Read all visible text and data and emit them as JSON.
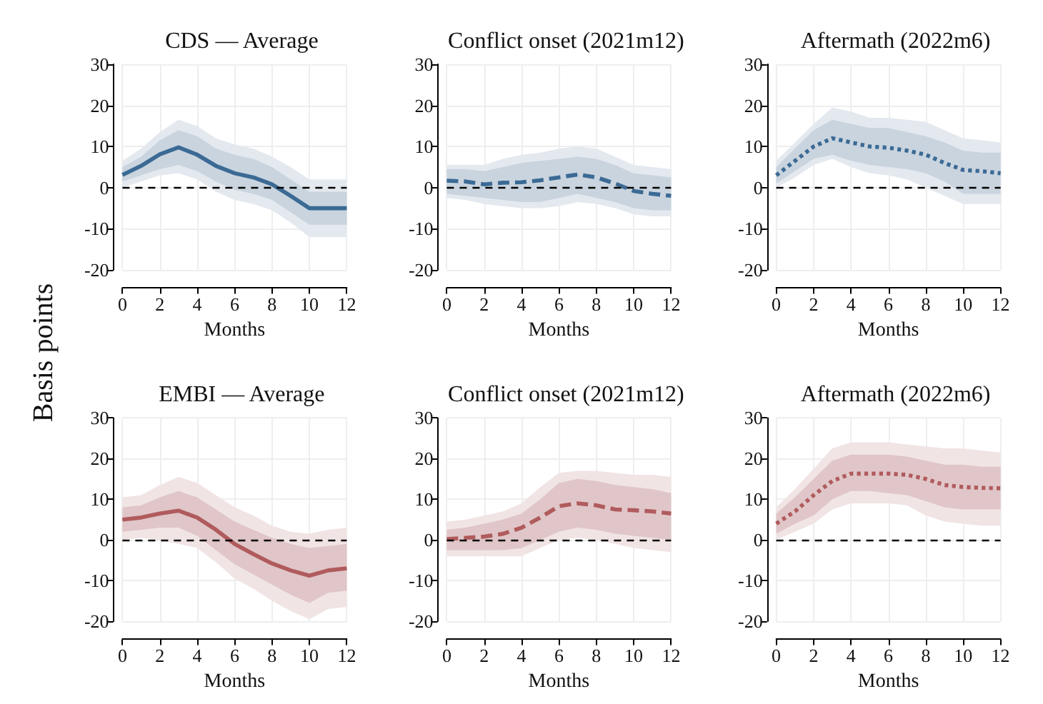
{
  "chart_data": [
    {
      "type": "line",
      "title": "CDS — Average",
      "xlabel": "Months",
      "ylabel": "Basis points",
      "x": [
        0,
        1,
        2,
        3,
        4,
        5,
        6,
        7,
        8,
        9,
        10,
        11,
        12
      ],
      "xlim": [
        0,
        12
      ],
      "xticks": [
        0,
        2,
        4,
        6,
        8,
        10,
        12
      ],
      "ylim": [
        -20,
        30
      ],
      "yticks": [
        -20,
        -10,
        0,
        10,
        20,
        30
      ],
      "grid": true,
      "line_style": "solid",
      "ref_lines": [
        {
          "axis": "y",
          "value": 0,
          "color": "#000000",
          "line_style": "dashed"
        }
      ],
      "series": [
        {
          "color": "#e4e9ef",
          "values": [
            null,
            null,
            null,
            null,
            null,
            null,
            null,
            null,
            null,
            null,
            null,
            null,
            null
          ],
          "lower": [
            0,
            1.5,
            3,
            3.5,
            2,
            -1,
            -3,
            -4,
            -5.5,
            -8.5,
            -12,
            -12,
            -12
          ],
          "upper": [
            6.5,
            9.5,
            13.5,
            16.5,
            15,
            12,
            10.5,
            9.5,
            7.5,
            5,
            2,
            2,
            2
          ]
        },
        {
          "color": "#c9d4df",
          "values": [
            null,
            null,
            null,
            null,
            null,
            null,
            null,
            null,
            null,
            null,
            null,
            null,
            null
          ],
          "lower": [
            1.5,
            3,
            4.5,
            5.5,
            4,
            1.5,
            -0.5,
            -1.5,
            -3,
            -6,
            -9,
            -9,
            -9
          ],
          "upper": [
            5,
            7.5,
            11.5,
            14,
            12.5,
            9.5,
            8,
            7,
            5,
            2,
            -1,
            -1,
            -1
          ]
        },
        {
          "color": "#3b6a94",
          "values": [
            3.1,
            5.3,
            8.1,
            9.8,
            8,
            5.3,
            3.5,
            2.5,
            0.8,
            -2,
            -5,
            -5,
            -5
          ]
        }
      ]
    },
    {
      "type": "line",
      "title": "Conflict onset (2021m12)",
      "xlabel": "Months",
      "x": [
        0,
        1,
        2,
        3,
        4,
        5,
        6,
        7,
        8,
        9,
        10,
        11,
        12
      ],
      "xlim": [
        0,
        12
      ],
      "xticks": [
        0,
        2,
        4,
        6,
        8,
        10,
        12
      ],
      "ylim": [
        -20,
        30
      ],
      "yticks": [
        -20,
        -10,
        0,
        10,
        20,
        30
      ],
      "grid": true,
      "line_style": "dashed",
      "ref_lines": [
        {
          "axis": "y",
          "value": 0,
          "color": "#000000",
          "line_style": "dashed"
        }
      ],
      "series": [
        {
          "color": "#e4e9ef",
          "values": [
            null,
            null,
            null,
            null,
            null,
            null,
            null,
            null,
            null,
            null,
            null,
            null,
            null
          ],
          "lower": [
            -2.5,
            -3,
            -4,
            -4.5,
            -5,
            -5,
            -4.5,
            -3.5,
            -4,
            -5,
            -6.5,
            -7,
            -7
          ],
          "upper": [
            5.5,
            5.5,
            5.5,
            7,
            8,
            8.5,
            9.5,
            10,
            9.5,
            7.5,
            5.5,
            5,
            4.5
          ]
        },
        {
          "color": "#c9d4df",
          "values": [
            null,
            null,
            null,
            null,
            null,
            null,
            null,
            null,
            null,
            null,
            null,
            null,
            null
          ],
          "lower": [
            -1.5,
            -2,
            -2.5,
            -3,
            -3.5,
            -3.5,
            -2.5,
            -1.5,
            -2.5,
            -3.5,
            -5,
            -5.5,
            -5.5
          ],
          "upper": [
            4.5,
            4.5,
            4,
            5,
            6,
            6.5,
            7,
            7.5,
            7,
            5.5,
            3.5,
            3,
            2.5
          ]
        },
        {
          "color": "#3b6a94",
          "values": [
            1.7,
            1.5,
            0.8,
            1.2,
            1.3,
            1.8,
            2.5,
            3.2,
            2.5,
            1,
            -0.8,
            -1.5,
            -2
          ]
        }
      ]
    },
    {
      "type": "line",
      "title": "Aftermath (2022m6)",
      "xlabel": "Months",
      "x": [
        0,
        1,
        2,
        3,
        4,
        5,
        6,
        7,
        8,
        9,
        10,
        11,
        12
      ],
      "xlim": [
        0,
        12
      ],
      "xticks": [
        0,
        2,
        4,
        6,
        8,
        10,
        12
      ],
      "ylim": [
        -20,
        30
      ],
      "yticks": [
        -20,
        -10,
        0,
        10,
        20,
        30
      ],
      "grid": true,
      "line_style": "dotted",
      "ref_lines": [
        {
          "axis": "y",
          "value": 0,
          "color": "#000000",
          "line_style": "dashed"
        }
      ],
      "series": [
        {
          "color": "#e4e9ef",
          "values": [
            null,
            null,
            null,
            null,
            null,
            null,
            null,
            null,
            null,
            null,
            null,
            null,
            null
          ],
          "lower": [
            0,
            2.5,
            5.5,
            7,
            5,
            3.5,
            3,
            2,
            0,
            -2,
            -4,
            -4,
            -4
          ],
          "upper": [
            6.5,
            11,
            15.5,
            19.5,
            18.5,
            17,
            17,
            16.5,
            16,
            14,
            12,
            11.5,
            11
          ]
        },
        {
          "color": "#c9d4df",
          "values": [
            null,
            null,
            null,
            null,
            null,
            null,
            null,
            null,
            null,
            null,
            null,
            null,
            null
          ],
          "lower": [
            1,
            4,
            7,
            8,
            6.5,
            5.5,
            5,
            4.5,
            3.5,
            1.5,
            -1.5,
            -1.5,
            -1.5
          ],
          "upper": [
            5,
            9.5,
            14,
            16.5,
            15.5,
            14.5,
            14.5,
            13.5,
            12.5,
            11,
            9,
            8.5,
            8.5
          ]
        },
        {
          "color": "#3b6a94",
          "values": [
            3,
            6.5,
            10,
            12,
            11,
            10,
            9.7,
            9,
            8,
            6,
            4.3,
            4,
            3.5
          ]
        }
      ]
    },
    {
      "type": "line",
      "title": "EMBI — Average",
      "xlabel": "Months",
      "x": [
        0,
        1,
        2,
        3,
        4,
        5,
        6,
        7,
        8,
        9,
        10,
        11,
        12
      ],
      "xlim": [
        0,
        12
      ],
      "xticks": [
        0,
        2,
        4,
        6,
        8,
        10,
        12
      ],
      "ylim": [
        -20,
        30
      ],
      "yticks": [
        -20,
        -10,
        0,
        10,
        20,
        30
      ],
      "grid": true,
      "line_style": "solid",
      "ref_lines": [
        {
          "axis": "y",
          "value": 0,
          "color": "#000000",
          "line_style": "dashed"
        }
      ],
      "series": [
        {
          "color": "#f1e4e5",
          "values": [
            null,
            null,
            null,
            null,
            null,
            null,
            null,
            null,
            null,
            null,
            null,
            null,
            null
          ],
          "lower": [
            0,
            0.5,
            0,
            -1,
            -2,
            -5.5,
            -9.5,
            -12,
            -15,
            -17.5,
            -19.5,
            -17,
            -16.5
          ],
          "upper": [
            10.5,
            11,
            13.5,
            15.5,
            14,
            11,
            8,
            6,
            3.5,
            2,
            1.5,
            2.5,
            3
          ]
        },
        {
          "color": "#e0c6c8",
          "values": [
            null,
            null,
            null,
            null,
            null,
            null,
            null,
            null,
            null,
            null,
            null,
            null,
            null
          ],
          "lower": [
            2,
            2.5,
            3,
            3,
            1,
            -2.5,
            -6,
            -8.5,
            -11,
            -13.5,
            -15.5,
            -13,
            -12.5
          ],
          "upper": [
            8,
            8.5,
            10.5,
            12,
            10.5,
            7.5,
            4.5,
            2.5,
            0.5,
            -1,
            -2,
            -1.5,
            -1
          ]
        },
        {
          "color": "#b05b5d",
          "values": [
            5,
            5.5,
            6.5,
            7.2,
            5.5,
            2.5,
            -1,
            -3.5,
            -5.8,
            -7.5,
            -8.8,
            -7.5,
            -7
          ]
        }
      ]
    },
    {
      "type": "line",
      "title": "Conflict onset (2021m12)",
      "xlabel": "Months",
      "x": [
        0,
        1,
        2,
        3,
        4,
        5,
        6,
        7,
        8,
        9,
        10,
        11,
        12
      ],
      "xlim": [
        0,
        12
      ],
      "xticks": [
        0,
        2,
        4,
        6,
        8,
        10,
        12
      ],
      "ylim": [
        -20,
        30
      ],
      "yticks": [
        -20,
        -10,
        0,
        10,
        20,
        30
      ],
      "grid": true,
      "line_style": "dashed",
      "ref_lines": [
        {
          "axis": "y",
          "value": 0,
          "color": "#000000",
          "line_style": "dashed"
        }
      ],
      "series": [
        {
          "color": "#f1e4e5",
          "values": [
            null,
            null,
            null,
            null,
            null,
            null,
            null,
            null,
            null,
            null,
            null,
            null,
            null
          ],
          "lower": [
            -4,
            -4,
            -4,
            -4,
            -4,
            -2,
            0,
            0.5,
            0,
            -1,
            -2,
            -2.5,
            -3
          ],
          "upper": [
            4.5,
            5,
            6,
            7,
            9,
            13,
            16.5,
            17,
            17,
            16.5,
            16,
            16,
            15.5
          ]
        },
        {
          "color": "#e0c6c8",
          "values": [
            null,
            null,
            null,
            null,
            null,
            null,
            null,
            null,
            null,
            null,
            null,
            null,
            null
          ],
          "lower": [
            -2.5,
            -2.5,
            -2.5,
            -2.5,
            -2,
            0,
            2,
            3,
            2.5,
            1.5,
            1,
            0.5,
            0
          ],
          "upper": [
            2.5,
            3,
            4,
            5,
            6.5,
            10,
            14,
            15,
            14.5,
            13.5,
            13,
            12.5,
            11.5
          ]
        },
        {
          "color": "#b05b5d",
          "values": [
            0.2,
            0.5,
            0.8,
            1.5,
            3,
            5.5,
            8.3,
            9,
            8.5,
            7.5,
            7.3,
            7,
            6.5
          ]
        }
      ]
    },
    {
      "type": "line",
      "title": "Aftermath (2022m6)",
      "xlabel": "Months",
      "x": [
        0,
        1,
        2,
        3,
        4,
        5,
        6,
        7,
        8,
        9,
        10,
        11,
        12
      ],
      "xlim": [
        0,
        12
      ],
      "xticks": [
        0,
        2,
        4,
        6,
        8,
        10,
        12
      ],
      "ylim": [
        -20,
        30
      ],
      "yticks": [
        -20,
        -10,
        0,
        10,
        20,
        30
      ],
      "grid": true,
      "line_style": "dotted",
      "ref_lines": [
        {
          "axis": "y",
          "value": 0,
          "color": "#000000",
          "line_style": "dashed"
        }
      ],
      "series": [
        {
          "color": "#f1e4e5",
          "values": [
            null,
            null,
            null,
            null,
            null,
            null,
            null,
            null,
            null,
            null,
            null,
            null,
            null
          ],
          "lower": [
            0,
            2,
            4,
            7.5,
            9,
            9,
            9,
            8.5,
            6,
            4.5,
            4,
            3.5,
            3.5
          ],
          "upper": [
            8,
            12.5,
            17.5,
            22.5,
            24,
            24,
            24,
            23.5,
            23,
            22.5,
            22.5,
            22,
            21.5
          ]
        },
        {
          "color": "#e0c6c8",
          "values": [
            null,
            null,
            null,
            null,
            null,
            null,
            null,
            null,
            null,
            null,
            null,
            null,
            null
          ],
          "lower": [
            1.5,
            4,
            6,
            10,
            12,
            12,
            11.5,
            11,
            9.5,
            8,
            7.5,
            7.5,
            7.5
          ],
          "upper": [
            6.5,
            10.5,
            15,
            19.5,
            21,
            21,
            21,
            20.5,
            19.5,
            18.5,
            18.5,
            18,
            18
          ]
        },
        {
          "color": "#b05b5d",
          "values": [
            4,
            7,
            11,
            14.5,
            16.3,
            16.3,
            16.3,
            16,
            15,
            13.5,
            13,
            12.8,
            12.7
          ]
        }
      ]
    }
  ]
}
